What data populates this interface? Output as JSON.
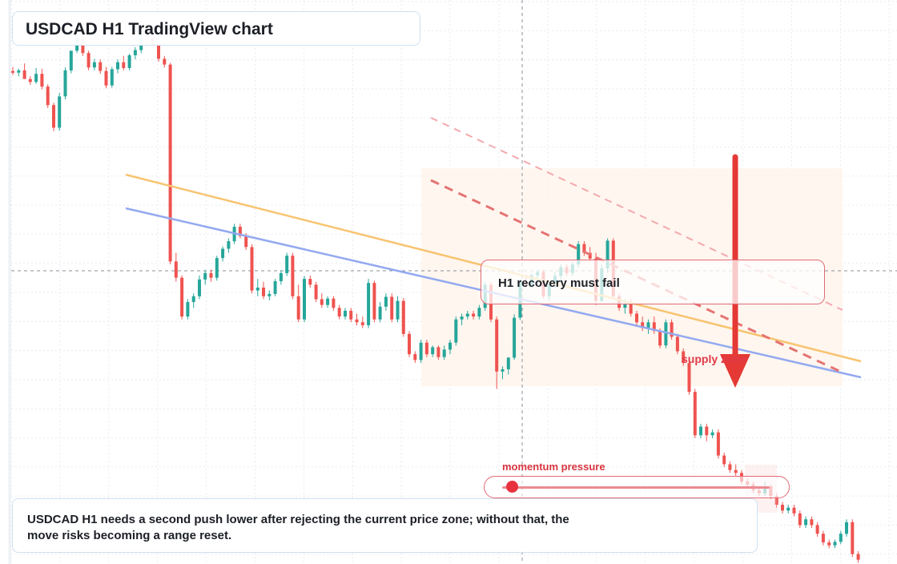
{
  "title": "USDCAD H1 TradingView chart",
  "callout": "H1 recovery must fail",
  "zone_label": "supply zone",
  "momentum_label": "momentum pressure",
  "momentum_level": 0.07,
  "note": "USDCAD H1 needs a second push lower after rejecting the current price zone; without that, the move risks becoming a range reset.",
  "colors": {
    "up": "#26a69a",
    "down": "#ef5350",
    "trendline_orange": "#f8c471",
    "trendline_blue": "#93a9f0",
    "dashed_projection": "#e57373",
    "arrow": "#e53935",
    "zone_fill": "#fff4ec"
  },
  "chart_data": {
    "type": "candlestick",
    "symbol": "USDCAD",
    "timeframe": "H1",
    "title": "",
    "xlabel": "",
    "ylabel": "",
    "grid": true,
    "ylim": [
      0,
      100
    ],
    "current_price": 50,
    "candles": [
      [
        84.5,
        85.2,
        83.8,
        84.2
      ],
      [
        84.2,
        84.9,
        83.6,
        84.6
      ],
      [
        84.6,
        85.8,
        84.1,
        83.1
      ],
      [
        83.1,
        83.6,
        82.1,
        82.6
      ],
      [
        82.6,
        85.0,
        82.3,
        84.0
      ],
      [
        84.0,
        84.9,
        81.3,
        81.8
      ],
      [
        81.8,
        82.2,
        78.1,
        78.6
      ],
      [
        78.6,
        79.0,
        74.1,
        74.7
      ],
      [
        74.7,
        80.7,
        74.2,
        80.1
      ],
      [
        80.1,
        85.1,
        79.6,
        84.6
      ],
      [
        84.6,
        87.9,
        84.1,
        88.0
      ],
      [
        88.0,
        92.6,
        87.6,
        90.1
      ],
      [
        90.1,
        90.9,
        87.1,
        87.6
      ],
      [
        87.6,
        88.0,
        84.6,
        85.1
      ],
      [
        85.1,
        86.6,
        84.6,
        86.0
      ],
      [
        86.0,
        86.5,
        84.0,
        84.5
      ],
      [
        84.5,
        85.2,
        81.5,
        82.0
      ],
      [
        82.0,
        85.2,
        81.6,
        84.8
      ],
      [
        84.8,
        86.5,
        84.1,
        86.0
      ],
      [
        86.0,
        87.1,
        84.6,
        85.0
      ],
      [
        85.0,
        87.5,
        84.6,
        87.2
      ],
      [
        87.2,
        88.6,
        86.5,
        88.1
      ],
      [
        88.1,
        91.2,
        87.6,
        90.6
      ],
      [
        90.6,
        91.1,
        89.6,
        90.3
      ],
      [
        90.3,
        91.2,
        89.6,
        89.0
      ],
      [
        89.0,
        89.5,
        86.1,
        86.6
      ],
      [
        86.6,
        87.1,
        85.1,
        85.6
      ],
      [
        85.6,
        85.9,
        51.1,
        51.6
      ],
      [
        51.6,
        53.1,
        48.1,
        48.8
      ],
      [
        48.8,
        49.2,
        41.6,
        42.1
      ],
      [
        42.1,
        45.1,
        41.6,
        44.6
      ],
      [
        44.6,
        46.1,
        43.6,
        45.6
      ],
      [
        45.6,
        49.2,
        45.1,
        48.5
      ],
      [
        48.5,
        50.1,
        47.6,
        49.6
      ],
      [
        49.6,
        50.2,
        48.1,
        48.8
      ],
      [
        48.8,
        52.6,
        48.3,
        52.2
      ],
      [
        52.2,
        54.2,
        51.6,
        53.8
      ],
      [
        53.8,
        55.6,
        53.1,
        55.1
      ],
      [
        55.1,
        58.1,
        54.6,
        57.6
      ],
      [
        57.6,
        58.1,
        55.6,
        56.0
      ],
      [
        56.0,
        56.5,
        53.6,
        54.1
      ],
      [
        54.1,
        54.6,
        46.1,
        46.6
      ],
      [
        46.6,
        48.6,
        45.6,
        47.1
      ],
      [
        47.1,
        48.1,
        45.1,
        45.6
      ],
      [
        45.6,
        46.6,
        44.9,
        46.0
      ],
      [
        46.0,
        48.6,
        45.6,
        48.2
      ],
      [
        48.2,
        50.1,
        47.6,
        49.6
      ],
      [
        49.6,
        53.1,
        49.1,
        52.6
      ],
      [
        52.6,
        53.1,
        45.1,
        45.6
      ],
      [
        45.6,
        47.6,
        41.1,
        41.6
      ],
      [
        41.6,
        49.1,
        41.1,
        48.6
      ],
      [
        48.6,
        49.2,
        47.1,
        47.6
      ],
      [
        47.6,
        48.1,
        44.6,
        45.1
      ],
      [
        45.1,
        46.1,
        43.6,
        44.1
      ],
      [
        44.1,
        45.6,
        43.6,
        45.2
      ],
      [
        45.2,
        45.6,
        43.1,
        43.6
      ],
      [
        43.6,
        44.1,
        41.6,
        42.1
      ],
      [
        42.1,
        43.6,
        41.6,
        43.1
      ],
      [
        43.1,
        43.6,
        41.1,
        41.6
      ],
      [
        41.6,
        42.6,
        40.6,
        41.1
      ],
      [
        41.1,
        42.1,
        40.1,
        40.6
      ],
      [
        40.6,
        48.6,
        40.1,
        47.9
      ],
      [
        47.9,
        48.3,
        41.1,
        41.6
      ],
      [
        41.6,
        44.6,
        41.1,
        43.8
      ],
      [
        43.8,
        46.1,
        43.1,
        45.5
      ],
      [
        45.5,
        46.1,
        41.1,
        41.6
      ],
      [
        41.6,
        45.6,
        41.1,
        44.8
      ],
      [
        44.8,
        45.3,
        38.6,
        39.1
      ],
      [
        39.1,
        39.6,
        35.1,
        35.6
      ],
      [
        35.6,
        36.1,
        34.1,
        34.6
      ],
      [
        34.6,
        38.1,
        34.1,
        37.6
      ],
      [
        37.6,
        38.1,
        35.1,
        35.6
      ],
      [
        35.6,
        37.1,
        35.1,
        36.8
      ],
      [
        36.8,
        37.1,
        34.6,
        35.1
      ],
      [
        35.1,
        37.1,
        34.6,
        36.4
      ],
      [
        36.4,
        38.1,
        35.6,
        37.6
      ],
      [
        37.6,
        42.1,
        37.1,
        41.6
      ],
      [
        41.6,
        42.6,
        40.6,
        42.1
      ],
      [
        42.1,
        43.1,
        41.6,
        42.6
      ],
      [
        42.6,
        43.1,
        41.6,
        42.1
      ],
      [
        42.1,
        44.1,
        41.6,
        43.6
      ],
      [
        43.6,
        48.1,
        43.1,
        47.6
      ],
      [
        47.6,
        48.1,
        41.1,
        41.6
      ],
      [
        41.6,
        42.1,
        29.6,
        32.6
      ],
      [
        32.6,
        33.5,
        31.3,
        33.0
      ],
      [
        33.0,
        35.1,
        32.1,
        35.0
      ],
      [
        35.0,
        42.5,
        34.6,
        41.9
      ],
      [
        41.9,
        48.5,
        41.5,
        48.1
      ],
      [
        48.1,
        49.1,
        47.1,
        47.6
      ],
      [
        47.6,
        49.6,
        47.1,
        49.2
      ],
      [
        49.2,
        50.1,
        48.1,
        49.8
      ],
      [
        49.8,
        50.2,
        45.2,
        45.6
      ],
      [
        45.6,
        48.0,
        44.8,
        47.6
      ],
      [
        47.6,
        49.8,
        47.1,
        49.1
      ],
      [
        49.1,
        51.1,
        48.1,
        50.6
      ],
      [
        50.6,
        51.1,
        49.1,
        49.6
      ],
      [
        49.6,
        51.6,
        49.1,
        51.1
      ],
      [
        51.1,
        55.1,
        50.6,
        54.6
      ],
      [
        54.6,
        55.1,
        52.6,
        53.1
      ],
      [
        53.1,
        54.1,
        51.6,
        52.1
      ],
      [
        52.1,
        53.1,
        44.1,
        44.8
      ],
      [
        44.8,
        51.1,
        44.6,
        50.4
      ],
      [
        50.4,
        55.6,
        49.6,
        55.2
      ],
      [
        55.2,
        55.6,
        45.1,
        45.6
      ],
      [
        45.6,
        46.1,
        43.1,
        43.6
      ],
      [
        43.6,
        45.1,
        42.6,
        44.2
      ],
      [
        44.2,
        45.1,
        42.1,
        42.6
      ],
      [
        42.6,
        43.1,
        40.6,
        41.1
      ],
      [
        41.1,
        42.1,
        39.6,
        40.1
      ],
      [
        40.1,
        41.6,
        39.1,
        41.1
      ],
      [
        41.1,
        42.1,
        39.1,
        39.6
      ],
      [
        39.6,
        40.1,
        36.6,
        37.1
      ],
      [
        37.1,
        41.6,
        36.6,
        41.1
      ],
      [
        41.1,
        41.6,
        38.1,
        38.6
      ],
      [
        38.6,
        39.1,
        35.6,
        36.1
      ],
      [
        36.1,
        36.6,
        33.6,
        34.1
      ],
      [
        34.1,
        34.6,
        28.6,
        29.1
      ],
      [
        29.1,
        29.6,
        21.1,
        21.6
      ],
      [
        21.6,
        23.6,
        21.1,
        23.1
      ],
      [
        23.1,
        23.6,
        20.6,
        21.6
      ],
      [
        21.6,
        22.6,
        21.1,
        22.1
      ],
      [
        22.1,
        22.6,
        17.6,
        18.1
      ],
      [
        18.1,
        18.6,
        16.1,
        16.6
      ],
      [
        16.6,
        17.1,
        15.1,
        15.6
      ],
      [
        15.6,
        16.6,
        14.6,
        15.1
      ],
      [
        15.1,
        15.6,
        13.1,
        13.6
      ],
      [
        13.6,
        14.1,
        12.6,
        13.1
      ],
      [
        13.1,
        13.6,
        11.6,
        12.1
      ],
      [
        12.1,
        12.6,
        11.1,
        11.6
      ],
      [
        11.6,
        13.6,
        11.1,
        12.8
      ],
      [
        12.8,
        13.1,
        10.6,
        11.1
      ],
      [
        11.1,
        11.6,
        9.1,
        9.6
      ],
      [
        9.6,
        10.1,
        8.1,
        8.6
      ],
      [
        8.6,
        9.6,
        8.1,
        9.1
      ],
      [
        9.1,
        9.6,
        7.6,
        8.1
      ],
      [
        8.1,
        8.6,
        5.6,
        6.1
      ],
      [
        6.1,
        7.6,
        5.6,
        7.1
      ],
      [
        7.1,
        7.6,
        5.6,
        6.1
      ],
      [
        6.1,
        6.6,
        4.1,
        4.6
      ],
      [
        4.6,
        5.1,
        2.6,
        3.1
      ],
      [
        3.1,
        3.6,
        2.1,
        2.6
      ],
      [
        2.6,
        3.6,
        2.1,
        3.2
      ],
      [
        3.2,
        5.1,
        2.8,
        4.6
      ],
      [
        4.6,
        7.1,
        4.1,
        6.6
      ],
      [
        6.6,
        7.1,
        0.6,
        1.1
      ],
      [
        1.1,
        1.6,
        -0.4,
        0.1
      ]
    ]
  }
}
